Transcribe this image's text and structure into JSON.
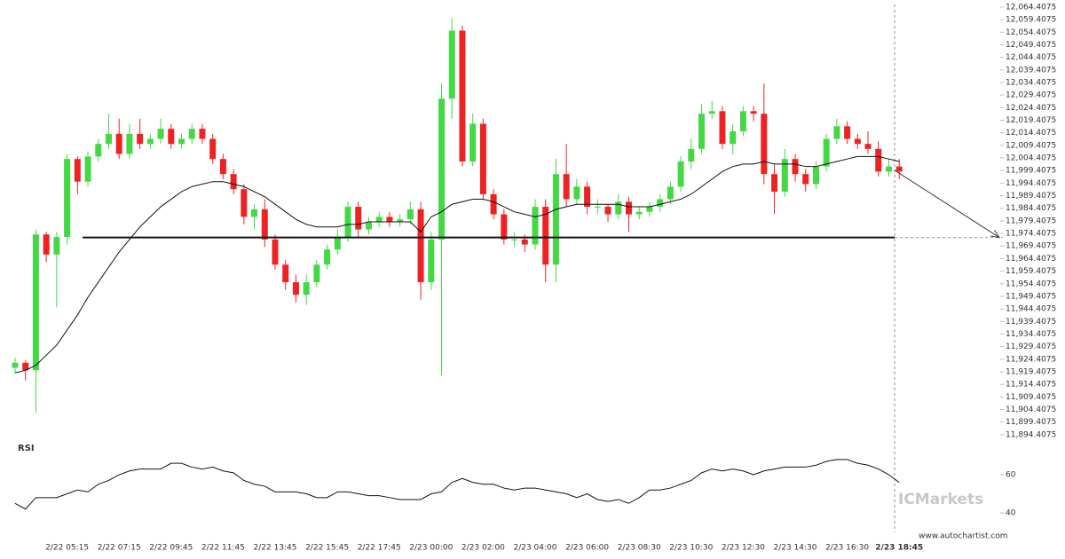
{
  "chart_data": {
    "type": "candlestick",
    "categories": [
      null,
      null,
      null,
      null,
      null,
      "2/22 05:15",
      null,
      null,
      null,
      null,
      "2/22 07:15",
      null,
      null,
      null,
      null,
      "2/22 09:45",
      null,
      null,
      null,
      null,
      "2/22 11:45",
      null,
      null,
      null,
      null,
      "2/22 13:45",
      null,
      null,
      null,
      null,
      "2/22 15:45",
      null,
      null,
      null,
      null,
      "2/22 17:45",
      null,
      null,
      null,
      null,
      "2/23 00:00",
      null,
      null,
      null,
      null,
      "2/23 02:00",
      null,
      null,
      null,
      null,
      "2/23 04:00",
      null,
      null,
      null,
      null,
      "2/23 06:00",
      null,
      null,
      null,
      null,
      "2/23 08:30",
      null,
      null,
      null,
      null,
      "2/23 10:30",
      null,
      null,
      null,
      null,
      "2/23 12:30",
      null,
      null,
      null,
      null,
      "2/23 14:30",
      null,
      null,
      null,
      null,
      "2/23 16:30",
      null,
      null,
      null,
      null,
      "2/23 18:45"
    ],
    "open": [
      11921,
      11923,
      11920,
      11974,
      11966,
      11973,
      12004,
      11995,
      12005,
      12010,
      12014,
      12006,
      12014,
      12010,
      12012,
      12016,
      12010,
      12012,
      12016,
      12012,
      12004,
      11998,
      11992,
      11981,
      11984,
      11972,
      11962,
      11955,
      11950,
      11955,
      11962,
      11968,
      11973,
      11985,
      11976,
      11979,
      11981,
      11979,
      11980,
      11984,
      11955,
      11972,
      12028,
      12055,
      12003,
      12018,
      11990,
      11982,
      11972,
      11972,
      11970,
      11985,
      11962,
      11998,
      11988,
      11993,
      11985,
      11985,
      11982,
      11987,
      11982,
      11983,
      11985,
      11988,
      11993,
      12003,
      12008,
      12022,
      12023,
      12010,
      12015,
      12023,
      12022,
      11998,
      11991,
      12004,
      11998,
      11994,
      12001,
      12012,
      12017,
      12012,
      12010,
      12008,
      11999,
      12001
    ],
    "high": [
      11925,
      11924,
      11976,
      11975,
      11975,
      12006,
      12005,
      12007,
      12012,
      12022,
      12020,
      12018,
      12020,
      12014,
      12020,
      12018,
      12014,
      12018,
      12018,
      12014,
      12006,
      12000,
      11994,
      11986,
      11988,
      11974,
      11964,
      11958,
      11958,
      11964,
      11970,
      11976,
      11987,
      11987,
      11981,
      11983,
      11983,
      11982,
      11987,
      11987,
      11975,
      12034,
      12060,
      12057,
      12022,
      12020,
      11992,
      11984,
      11975,
      11974,
      11988,
      11988,
      12004,
      12010,
      11996,
      11995,
      11988,
      11986,
      11990,
      11989,
      11985,
      11987,
      11990,
      11995,
      12005,
      12012,
      12026,
      12027,
      12025,
      12018,
      12025,
      12025,
      12034,
      12002,
      12008,
      12006,
      12000,
      12003,
      12014,
      12020,
      12019,
      12014,
      12015,
      12011,
      12004,
      12004
    ],
    "low": [
      11919,
      11916,
      11903,
      11963,
      11945,
      11970,
      11990,
      11993,
      12003,
      12008,
      12004,
      12004,
      12008,
      12008,
      12010,
      12008,
      12008,
      12010,
      12010,
      12002,
      11996,
      11990,
      11978,
      11976,
      11969,
      11960,
      11952,
      11947,
      11946,
      11953,
      11960,
      11966,
      11971,
      11973,
      11974,
      11977,
      11977,
      11977,
      11978,
      11948,
      11952,
      11918,
      12020,
      12001,
      12001,
      11988,
      11980,
      11970,
      11969,
      11967,
      11968,
      11955,
      11955,
      11985,
      11986,
      11982,
      11982,
      11979,
      11980,
      11975,
      11980,
      11981,
      11983,
      11986,
      11991,
      12000,
      12006,
      12020,
      12008,
      12006,
      12013,
      12019,
      11994,
      11982,
      11989,
      11995,
      11991,
      11992,
      11999,
      12010,
      12010,
      12008,
      12006,
      11997,
      11997,
      11996
    ],
    "close": [
      11923,
      11920,
      11974,
      11966,
      11973,
      12004,
      11995,
      12005,
      12010,
      12014,
      12006,
      12014,
      12010,
      12012,
      12016,
      12010,
      12012,
      12016,
      12012,
      12004,
      11998,
      11992,
      11981,
      11984,
      11972,
      11962,
      11955,
      11950,
      11955,
      11962,
      11968,
      11973,
      11985,
      11976,
      11979,
      11981,
      11979,
      11980,
      11984,
      11955,
      11972,
      12028,
      12055,
      12003,
      12018,
      11990,
      11982,
      11972,
      11972,
      11970,
      11985,
      11962,
      11998,
      11988,
      11993,
      11985,
      11985,
      11982,
      11987,
      11982,
      11983,
      11985,
      11988,
      11993,
      12003,
      12008,
      12022,
      12023,
      12010,
      12015,
      12023,
      12022,
      11998,
      11991,
      12004,
      11998,
      11994,
      12001,
      12012,
      12017,
      12012,
      12010,
      12008,
      11999,
      12001,
      11999
    ],
    "ma": [
      11919,
      11920,
      11922,
      11926,
      11930,
      11936,
      11942,
      11949,
      11955,
      11961,
      11967,
      11972,
      11977,
      11981,
      11985,
      11988,
      11991,
      11993,
      11994,
      11995,
      11995,
      11994,
      11993,
      11991,
      11989,
      11986,
      11983,
      11980,
      11978,
      11977,
      11977,
      11977,
      11978,
      11978,
      11979,
      11979,
      11979,
      11979,
      11979,
      11975,
      11981,
      11983,
      11986,
      11987,
      11988,
      11988,
      11987,
      11985,
      11983,
      11982,
      11981,
      11982,
      11984,
      11985,
      11986,
      11986,
      11986,
      11986,
      11986,
      11985,
      11985,
      11985,
      11986,
      11987,
      11988,
      11990,
      11993,
      11996,
      11999,
      12001,
      12002,
      12002,
      12003,
      12002,
      12002,
      12002,
      12001,
      12001,
      12002,
      12003,
      12004,
      12005,
      12005,
      12005,
      12004,
      12003
    ],
    "up_color": "#44d844",
    "down_color": "#ee2222",
    "ylim": [
      11892.6,
      12067.2
    ],
    "yticks": [
      {
        "value": 12064.4075,
        "label": "12,064.4075"
      },
      {
        "value": 12059.4075,
        "label": "12,059.4075"
      },
      {
        "value": 12054.4075,
        "label": "12,054.4075"
      },
      {
        "value": 12049.4075,
        "label": "12,049.4075"
      },
      {
        "value": 12044.4075,
        "label": "12,044.4075"
      },
      {
        "value": 12039.4075,
        "label": "12,039.4075"
      },
      {
        "value": 12034.4075,
        "label": "12,034.4075"
      },
      {
        "value": 12029.4075,
        "label": "12,029.4075"
      },
      {
        "value": 12024.4075,
        "label": "12,024.4075"
      },
      {
        "value": 12019.4075,
        "label": "12,019.4075"
      },
      {
        "value": 12014.4075,
        "label": "12,014.4075"
      },
      {
        "value": 12009.4075,
        "label": "12,009.4075"
      },
      {
        "value": 12004.4075,
        "label": "12,004.4075"
      },
      {
        "value": 11999.4075,
        "label": "11,999.4075"
      },
      {
        "value": 11994.4075,
        "label": "11,994.4075"
      },
      {
        "value": 11989.4075,
        "label": "11,989.4075"
      },
      {
        "value": 11984.4075,
        "label": "11,984.4075"
      },
      {
        "value": 11979.4075,
        "label": "11,979.4075"
      },
      {
        "value": 11974.4075,
        "label": "11,974.4075"
      },
      {
        "value": 11969.4075,
        "label": "11,969.4075"
      },
      {
        "value": 11964.4075,
        "label": "11,964.4075"
      },
      {
        "value": 11959.4075,
        "label": "11,959.4075"
      },
      {
        "value": 11954.4075,
        "label": "11,954.4075"
      },
      {
        "value": 11949.4075,
        "label": "11,949.4075"
      },
      {
        "value": 11944.4075,
        "label": "11,944.4075"
      },
      {
        "value": 11939.4075,
        "label": "11,939.4075"
      },
      {
        "value": 11934.4075,
        "label": "11,934.4075"
      },
      {
        "value": 11929.4075,
        "label": "11,929.4075"
      },
      {
        "value": 11924.4075,
        "label": "11,924.4075"
      },
      {
        "value": 11919.4075,
        "label": "11,919.4075"
      },
      {
        "value": 11914.4075,
        "label": "11,914.4075"
      },
      {
        "value": 11909.4075,
        "label": "11,909.4075"
      },
      {
        "value": 11904.4075,
        "label": "11,904.4075"
      },
      {
        "value": 11899.4075,
        "label": "11,899.4075"
      },
      {
        "value": 11894.4075,
        "label": "11,894.4075"
      }
    ],
    "support": 11972.8,
    "forecast": {
      "from": 11999.5,
      "to": 11972.8
    },
    "rsi_label": "RSI",
    "rsi": [
      45,
      42,
      48,
      48,
      48,
      50,
      52,
      51,
      55,
      57,
      60,
      62,
      63,
      63,
      63,
      66,
      66,
      64,
      63,
      64,
      62,
      61,
      57,
      55,
      54,
      51,
      51,
      51,
      50,
      48,
      48,
      51,
      51,
      50,
      49,
      49,
      48,
      47,
      47,
      47,
      50,
      51,
      56,
      58,
      56,
      55,
      55,
      53,
      52,
      53,
      53,
      52,
      51,
      50,
      48,
      50,
      47,
      46,
      47,
      45,
      48,
      52,
      52,
      53,
      55,
      57,
      61,
      63,
      62,
      63,
      62,
      60,
      62,
      63,
      64,
      64,
      64,
      65,
      67,
      68,
      68,
      66,
      65,
      63,
      60,
      56
    ],
    "rsi_ylim": [
      29.3,
      76.3
    ],
    "rsi_yticks": [
      60,
      40
    ],
    "watermark": "ICMarkets",
    "source": "www.autochartist.com"
  }
}
